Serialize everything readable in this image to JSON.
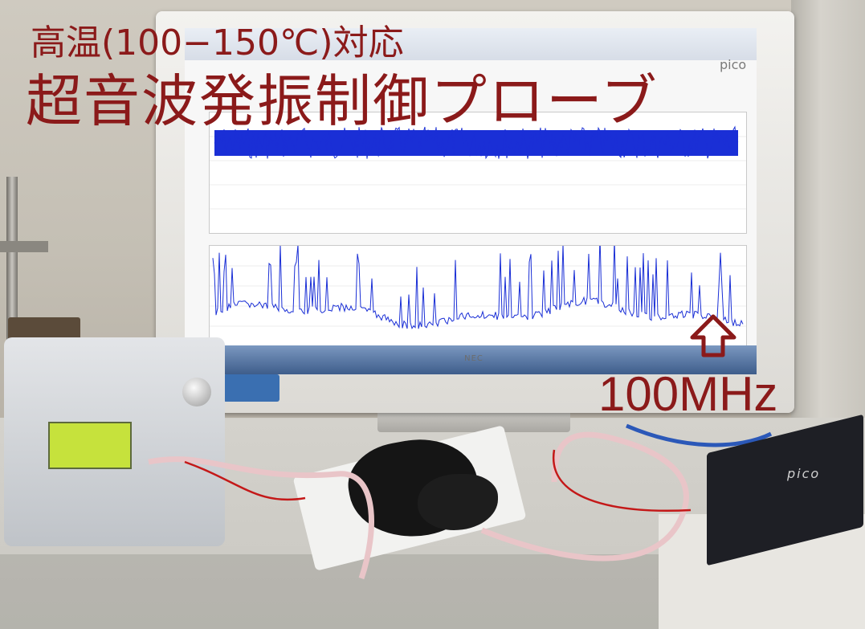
{
  "overlay": {
    "title_line1": "高温(100−150℃)対応",
    "title_line2": "超音波発振制御プローブ",
    "frequency_label": "100MHz"
  },
  "monitor": {
    "brand": "NEC",
    "software_logo": "pico"
  },
  "devices": {
    "oscilloscope_label": "pico"
  },
  "colors": {
    "title": "#8b1a1a",
    "waveform": "#1a2fd6",
    "arrow": "#8b1a1a"
  },
  "icons": [
    "up-arrow-icon",
    "windows-logo-icon"
  ]
}
